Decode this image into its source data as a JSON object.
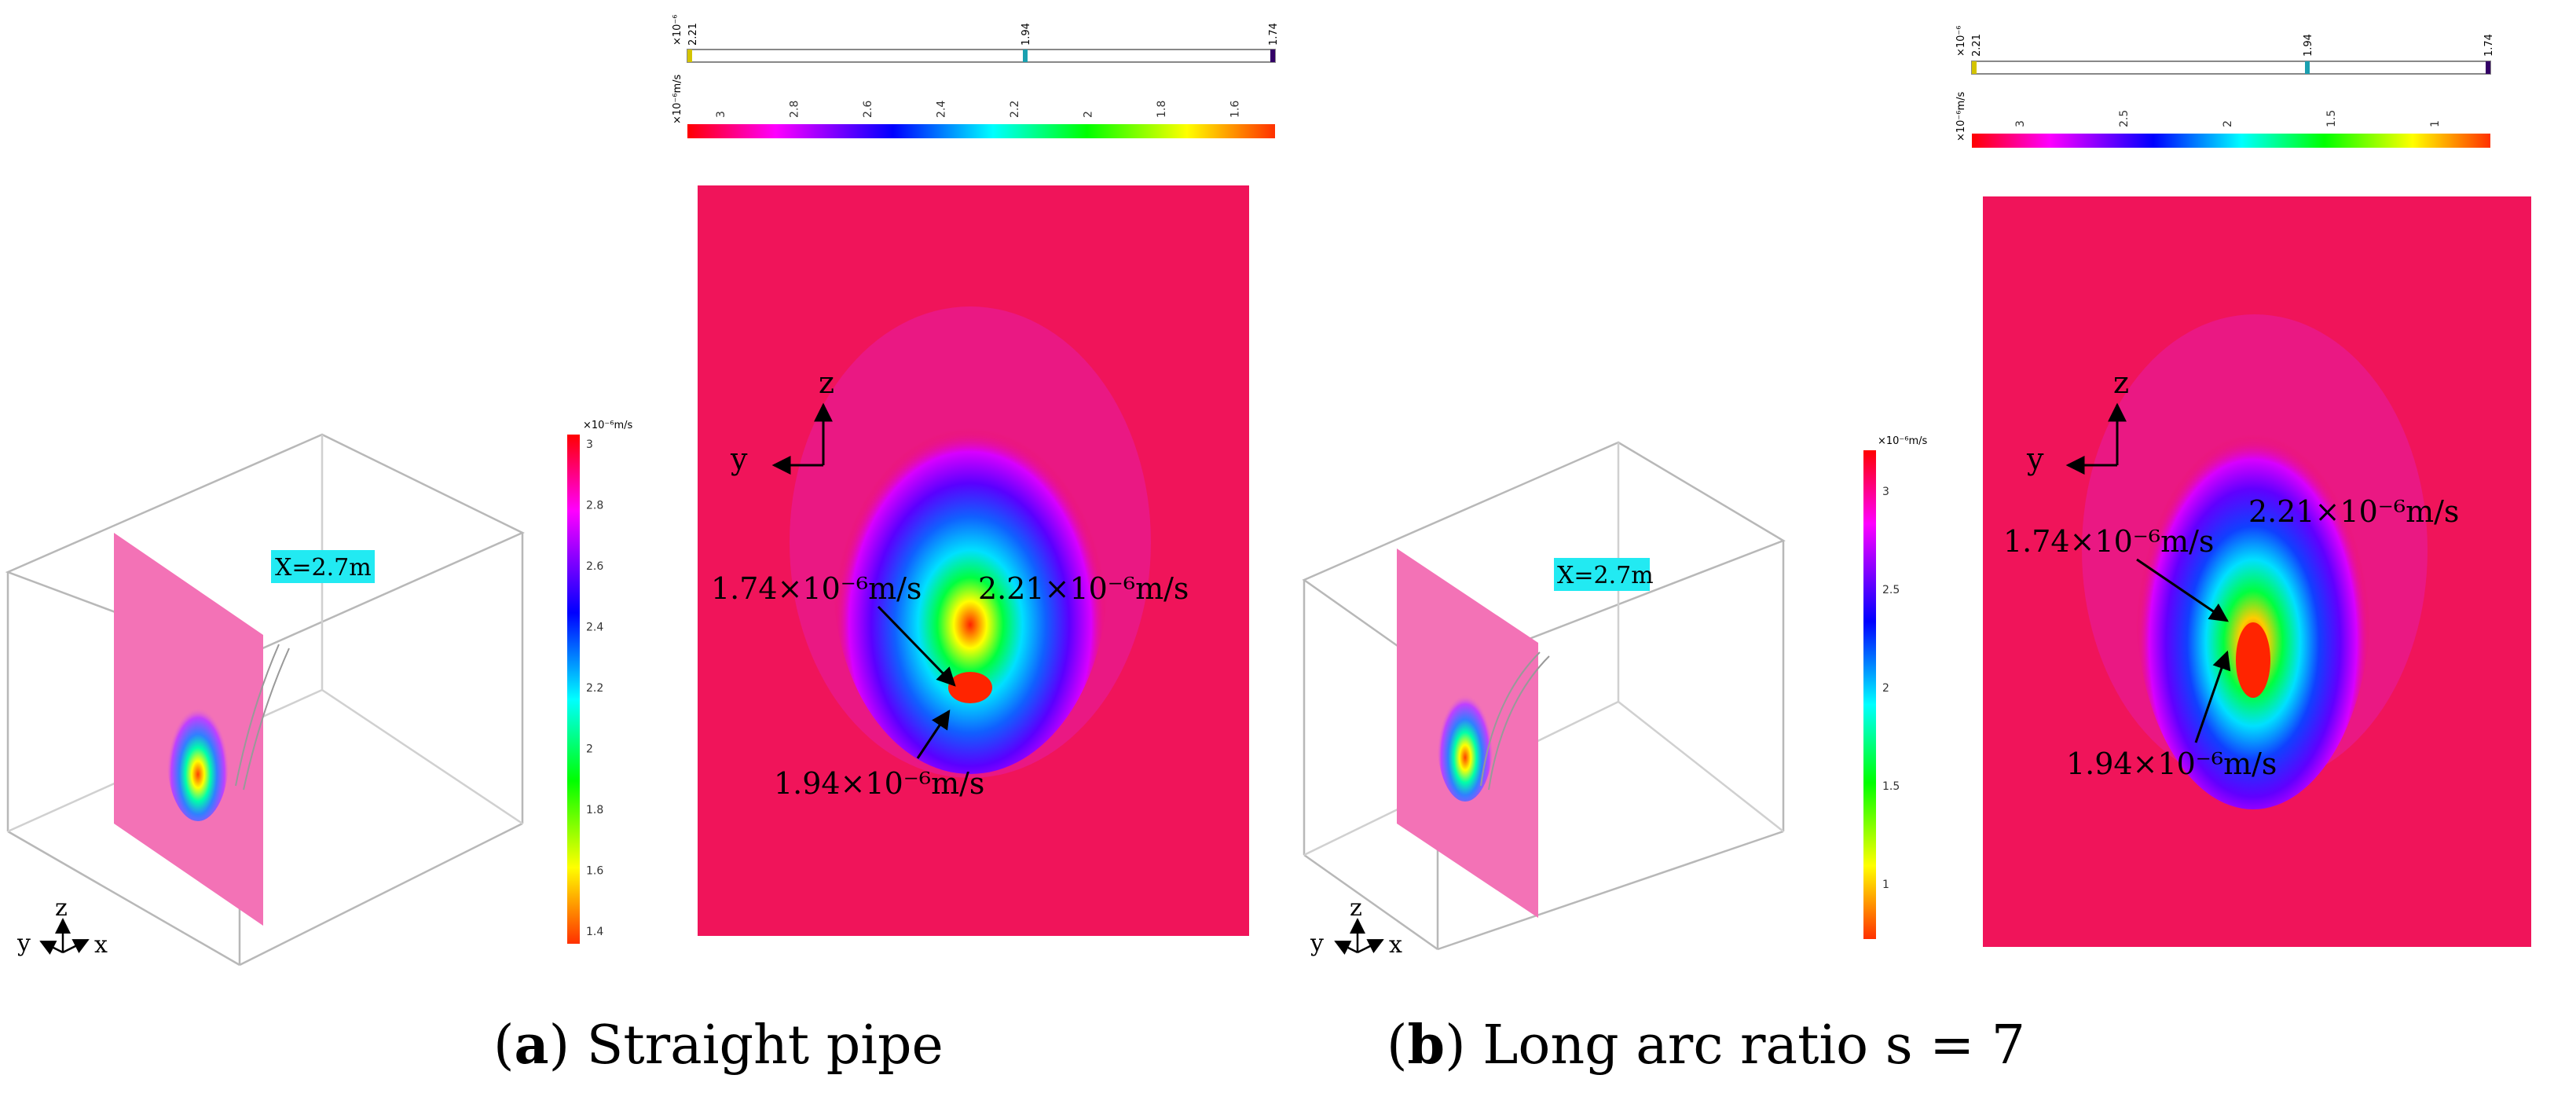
{
  "panels": [
    {
      "id": "a",
      "caption_letter": "a",
      "caption_text": "Straight pipe",
      "slice_label": "X=2.7m",
      "iso_scale_unit": "×10⁻⁶",
      "iso_ticks": [
        "2.21",
        "1.94",
        "1.74"
      ],
      "color_scale_unit": "×10⁻⁶m/s",
      "color_ticks": [
        "3",
        "2.8",
        "2.6",
        "2.4",
        "2.2",
        "2",
        "1.8",
        "1.6"
      ],
      "vertical_scale_unit": "×10⁻⁶m/s",
      "vertical_ticks": [
        "3",
        "2.8",
        "2.6",
        "2.4",
        "2.2",
        "2",
        "1.8",
        "1.6",
        "1.4"
      ],
      "axis_labels": {
        "z": "z",
        "y": "y",
        "x": "x"
      },
      "annotations": [
        "1.74×10⁻⁶m/s",
        "2.21×10⁻⁶m/s",
        "1.94×10⁻⁶m/s"
      ]
    },
    {
      "id": "b",
      "caption_letter": "b",
      "caption_text": "Long arc ratio s = 7",
      "slice_label": "X=2.7m",
      "iso_scale_unit": "×10⁻⁶",
      "iso_ticks": [
        "2.21",
        "1.94",
        "1.74"
      ],
      "color_scale_unit": "×10⁻⁶m/s",
      "color_ticks": [
        "3",
        "2.5",
        "2",
        "1.5",
        "1"
      ],
      "vertical_scale_unit": "×10⁻⁶m/s",
      "vertical_ticks": [
        "3",
        "2.5",
        "2",
        "1.5",
        "1"
      ],
      "axis_labels": {
        "z": "z",
        "y": "y",
        "x": "x"
      },
      "annotations": [
        "1.74×10⁻⁶m/s",
        "2.21×10⁻⁶m/s",
        "1.94×10⁻⁶m/s"
      ]
    }
  ],
  "colors": {
    "background_field": "#f0145a",
    "slice_plane": "#f372b6",
    "slice_label_bg": "#22eaf2",
    "rainbow": [
      "#ff0000",
      "#ff00ff",
      "#0000ff",
      "#00ffff",
      "#00ff00",
      "#ffff00",
      "#ff0000"
    ]
  }
}
